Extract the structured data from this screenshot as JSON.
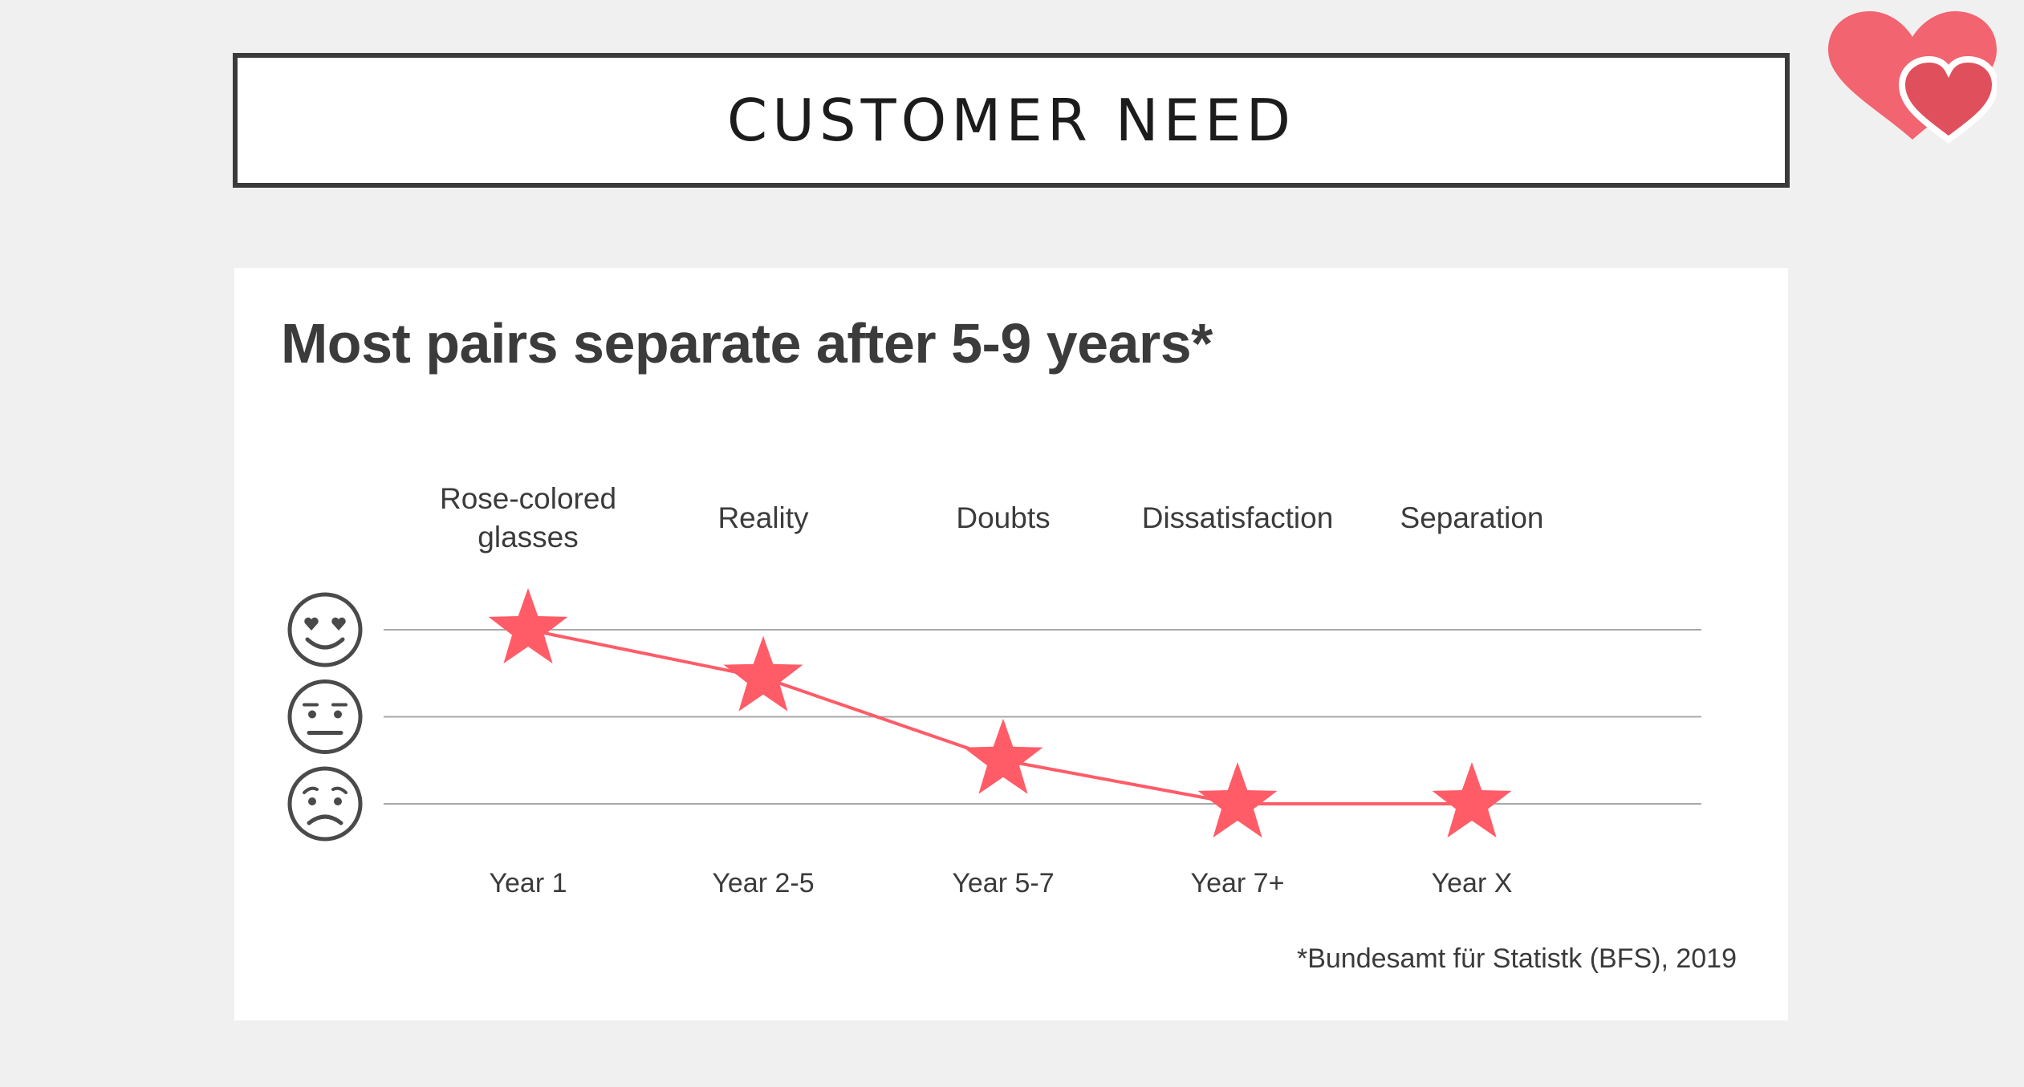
{
  "header": {
    "title": "CUSTOMER NEED"
  },
  "logo": {
    "icon": "double-heart-logo",
    "color_primary": "#f0616d",
    "color_secondary": "#e35a66"
  },
  "colors": {
    "accent": "#ff5c68",
    "line": "#ff5c68",
    "grid": "#a8a8a8",
    "text": "#3b3b3b"
  },
  "card": {
    "heading": "Most pairs separate after 5-9 years*",
    "source": "*Bundesamt für Statistk (BFS), 2019"
  },
  "chart_data": {
    "type": "line",
    "title": "Most pairs separate after 5-9 years*",
    "categories": [
      "Year 1",
      "Year 2-5",
      "Year 5-7",
      "Year 7+",
      "Year X"
    ],
    "phases": [
      [
        "Rose-colored",
        "glasses"
      ],
      [
        "Reality"
      ],
      [
        "Doubts"
      ],
      [
        "Dissatisfaction"
      ],
      [
        "Separation"
      ]
    ],
    "y_levels": [
      {
        "value": 3,
        "icon": "heart-eyes-face-icon"
      },
      {
        "value": 2,
        "icon": "neutral-face-icon"
      },
      {
        "value": 1,
        "icon": "worried-face-icon"
      }
    ],
    "ylim": [
      1,
      3
    ],
    "values": [
      3.0,
      2.45,
      1.5,
      1.0,
      1.0
    ],
    "marker": "star",
    "grid": true,
    "xlabel": "",
    "ylabel": ""
  }
}
